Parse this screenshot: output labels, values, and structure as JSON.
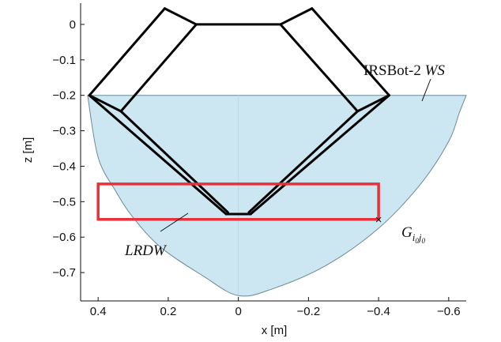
{
  "chart_data": {
    "type": "line",
    "xlabel": "x [m]",
    "ylabel": "z [m]",
    "xlim": [
      0.45,
      -0.65
    ],
    "ylim": [
      -0.78,
      0.06
    ],
    "x_ticks": [
      0.4,
      0.2,
      0,
      -0.2,
      -0.4,
      -0.6
    ],
    "x_tick_labels": [
      "0.4",
      "0.2",
      "0",
      "−0.2",
      "−0.4",
      "−0.6"
    ],
    "y_ticks": [
      0,
      -0.1,
      -0.2,
      -0.3,
      -0.4,
      -0.5,
      -0.6,
      -0.7
    ],
    "y_tick_labels": [
      "0",
      "−0.1",
      "−0.2",
      "−0.3",
      "−0.4",
      "−0.5",
      "−0.6",
      "−0.7"
    ],
    "grid": false,
    "workspace": {
      "fill": "#cde7f2",
      "stroke": "#6a8a96",
      "top_z": -0.2,
      "left_x": 0.43,
      "right_x": -0.65,
      "bottom": [
        0,
        -0.765
      ],
      "boundary": [
        [
          0.43,
          -0.2
        ],
        [
          0.4,
          -0.375
        ],
        [
          0.35,
          -0.47
        ],
        [
          0.3,
          -0.545
        ],
        [
          0.22,
          -0.63
        ],
        [
          0.1,
          -0.71
        ],
        [
          0.0,
          -0.765
        ],
        [
          -0.1,
          -0.745
        ],
        [
          -0.25,
          -0.68
        ],
        [
          -0.4,
          -0.575
        ],
        [
          -0.52,
          -0.45
        ],
        [
          -0.6,
          -0.33
        ],
        [
          -0.63,
          -0.25
        ],
        [
          -0.65,
          -0.2
        ]
      ]
    },
    "robot": {
      "stroke": "#000000",
      "segments": [
        [
          [
            0.21,
            0.045
          ],
          [
            0.425,
            -0.2
          ]
        ],
        [
          [
            0.21,
            0.045
          ],
          [
            0.12,
            0.0
          ]
        ],
        [
          [
            0.12,
            0.0
          ],
          [
            -0.12,
            0.0
          ]
        ],
        [
          [
            -0.12,
            0.0
          ],
          [
            -0.21,
            0.045
          ]
        ],
        [
          [
            -0.21,
            0.045
          ],
          [
            -0.43,
            -0.2
          ]
        ],
        [
          [
            0.12,
            0.0
          ],
          [
            0.335,
            -0.245
          ]
        ],
        [
          [
            -0.12,
            0.0
          ],
          [
            -0.34,
            -0.245
          ]
        ],
        [
          [
            0.425,
            -0.2
          ],
          [
            0.335,
            -0.245
          ]
        ],
        [
          [
            -0.43,
            -0.2
          ],
          [
            -0.34,
            -0.245
          ]
        ],
        [
          [
            0.425,
            -0.2
          ],
          [
            0.035,
            -0.535
          ]
        ],
        [
          [
            0.035,
            -0.535
          ],
          [
            -0.035,
            -0.535
          ]
        ],
        [
          [
            -0.035,
            -0.535
          ],
          [
            -0.43,
            -0.2
          ]
        ],
        [
          [
            0.335,
            -0.245
          ],
          [
            0.03,
            -0.53
          ]
        ],
        [
          [
            -0.34,
            -0.245
          ],
          [
            -0.03,
            -0.53
          ]
        ]
      ]
    },
    "lrdw": {
      "stroke": "#e8303a",
      "x": [
        0.4,
        -0.4
      ],
      "z": [
        -0.45,
        -0.55
      ]
    },
    "marker": {
      "x": -0.4,
      "z": -0.55,
      "symbol": "×"
    },
    "annotations": {
      "ws_label": {
        "main": "IRSBot-2 ",
        "italic": "WS"
      },
      "lrdw_label": "LRDW",
      "g_label": {
        "base": "G",
        "sub_i": "i",
        "sub_i0": "0",
        "sub_j": "j",
        "sub_j0": "0"
      }
    }
  }
}
